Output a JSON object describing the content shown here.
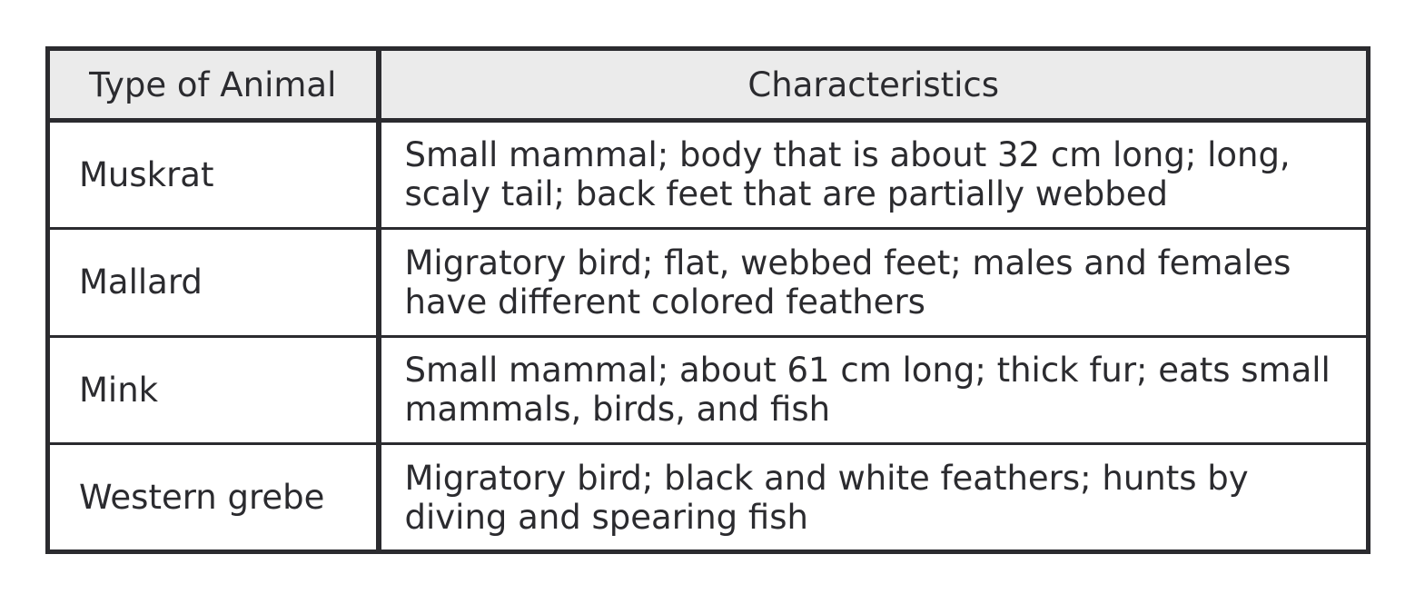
{
  "table": {
    "headers": [
      "Type of Animal",
      "Characteristics"
    ],
    "rows": [
      {
        "animal": "Muskrat",
        "characteristics": "Small mammal; body that is about 32 cm long; long, scaly tail; back feet that are partially webbed"
      },
      {
        "animal": "Mallard",
        "characteristics": "Migratory bird; flat, webbed feet; males and females have different colored feathers"
      },
      {
        "animal": "Mink",
        "characteristics": "Small mammal; about 61 cm long; thick fur; eats small mammals, birds, and fish"
      },
      {
        "animal": "Western grebe",
        "characteristics": "Migratory bird; black and white feathers; hunts by diving and spearing fish"
      }
    ]
  },
  "colors": {
    "border": "#2b2b2f",
    "header_background": "#ebebeb",
    "text": "#2b2b2f"
  }
}
